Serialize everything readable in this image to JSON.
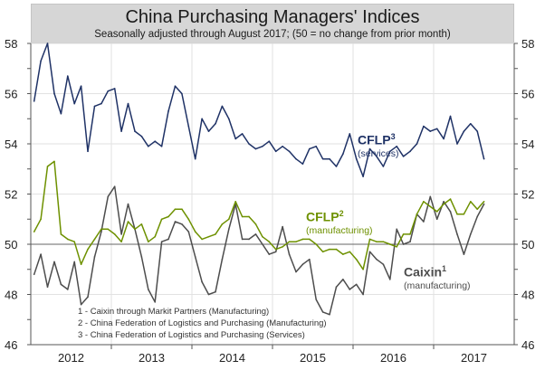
{
  "chart_data": {
    "type": "line",
    "title": "China Purchasing Managers' Indices",
    "subtitle": "Seasonally adjusted through August 2017; (50 = no change from prior month)",
    "xlabel": "",
    "ylabel": "",
    "x_start": "2012-01",
    "x_end": "2017-08",
    "x_tick_labels": [
      "2012",
      "2013",
      "2014",
      "2015",
      "2016",
      "2017"
    ],
    "y_ticks": [
      46,
      48,
      50,
      52,
      54,
      56,
      58
    ],
    "ylim": [
      46,
      58
    ],
    "reference_line": 50,
    "grid": true,
    "series": [
      {
        "name": "CFLP services",
        "label": "CFLP",
        "sup": "3",
        "sublabel": "(services)",
        "color": "#1f3266",
        "values": [
          55.7,
          57.3,
          58.0,
          56.0,
          55.2,
          56.7,
          55.6,
          56.3,
          53.7,
          55.5,
          55.6,
          56.1,
          56.2,
          54.5,
          55.6,
          54.5,
          54.3,
          53.9,
          54.1,
          53.9,
          55.3,
          56.3,
          56.0,
          54.7,
          53.4,
          55.0,
          54.5,
          54.8,
          55.5,
          55.0,
          54.2,
          54.4,
          54.0,
          53.8,
          53.9,
          54.1,
          53.7,
          53.9,
          53.7,
          53.4,
          53.2,
          53.8,
          53.9,
          53.4,
          53.4,
          53.1,
          53.6,
          54.4,
          53.4,
          52.7,
          53.8,
          53.5,
          53.1,
          53.7,
          53.9,
          53.5,
          53.7,
          54.0,
          54.7,
          54.5,
          54.6,
          54.2,
          55.1,
          54.0,
          54.5,
          54.8,
          54.5,
          53.4
        ]
      },
      {
        "name": "CFLP manufacturing",
        "label": "CFLP",
        "sup": "2",
        "sublabel": "(manufacturing)",
        "color": "#6e9100",
        "values": [
          50.5,
          51.0,
          53.1,
          53.3,
          50.4,
          50.2,
          50.1,
          49.2,
          49.8,
          50.2,
          50.6,
          50.6,
          50.4,
          50.1,
          50.9,
          50.6,
          50.8,
          50.1,
          50.3,
          51.0,
          51.1,
          51.4,
          51.4,
          51.0,
          50.5,
          50.2,
          50.3,
          50.4,
          50.8,
          51.0,
          51.7,
          51.1,
          51.1,
          50.8,
          50.3,
          50.1,
          49.8,
          49.9,
          50.1,
          50.1,
          50.2,
          50.2,
          50.0,
          49.7,
          49.8,
          49.8,
          49.6,
          49.7,
          49.4,
          49.0,
          50.2,
          50.1,
          50.1,
          50.0,
          49.9,
          50.4,
          50.4,
          51.2,
          51.7,
          51.5,
          51.3,
          51.6,
          51.8,
          51.2,
          51.2,
          51.7,
          51.4,
          51.7
        ]
      },
      {
        "name": "Caixin manufacturing",
        "label": "Caixin",
        "sup": "1",
        "sublabel": "(manufacturing)",
        "color": "#4d4d4d",
        "values": [
          48.8,
          49.6,
          48.3,
          49.3,
          48.4,
          48.2,
          49.3,
          47.6,
          47.9,
          49.5,
          50.5,
          51.9,
          52.3,
          50.4,
          51.6,
          50.6,
          49.5,
          48.2,
          47.7,
          50.1,
          50.2,
          50.9,
          50.8,
          50.5,
          49.5,
          48.5,
          48.0,
          48.1,
          49.4,
          50.6,
          51.6,
          50.2,
          50.2,
          50.4,
          50.0,
          49.6,
          49.7,
          50.7,
          49.6,
          48.9,
          49.2,
          49.4,
          47.8,
          47.3,
          47.2,
          48.3,
          48.6,
          48.2,
          48.4,
          48.0,
          49.7,
          49.4,
          49.2,
          48.6,
          50.6,
          50.0,
          50.1,
          51.2,
          50.9,
          51.9,
          51.0,
          51.7,
          51.3,
          50.4,
          49.6,
          50.4,
          51.1,
          51.6
        ]
      }
    ],
    "footnotes": [
      "1 - Caixin through Markit Partners (Manufacturing)",
      "2 - China Federation of Logistics and Purchasing (Manufacturing)",
      "3 - China Federation of Logistics and Purchasing (Services)"
    ]
  }
}
